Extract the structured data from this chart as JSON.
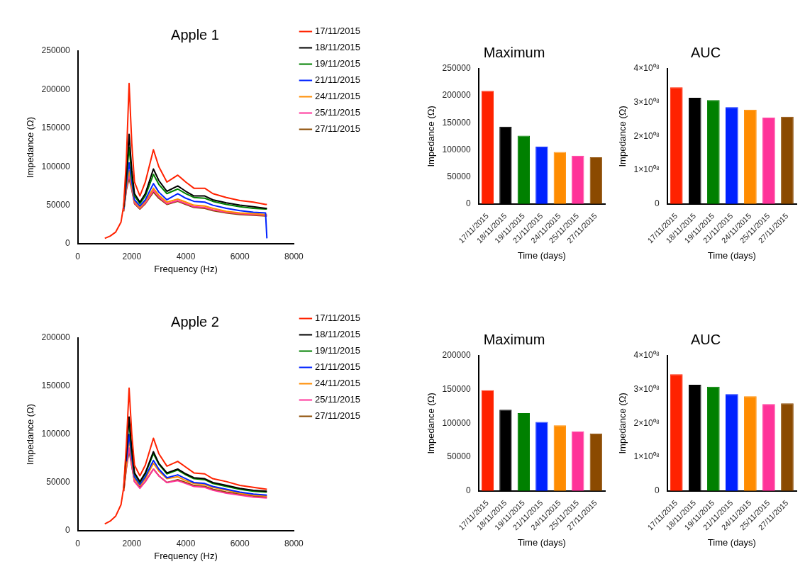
{
  "chart_data": [
    {
      "type": "line",
      "title": "Apple 1",
      "xlabel": "Frequency (Hz)",
      "ylabel": "Impedance (Ω)",
      "legend": "right",
      "marker": "none",
      "xlim": [
        0,
        8000
      ],
      "xticks": [
        0,
        2000,
        4000,
        6000,
        8000
      ],
      "ylim": [
        0,
        250000
      ],
      "yticks": [
        0,
        50000,
        100000,
        150000,
        200000,
        250000
      ],
      "x": [
        1000,
        1200,
        1400,
        1600,
        1700,
        1800,
        1900,
        2000,
        2100,
        2300,
        2500,
        2800,
        3000,
        3300,
        3700,
        4000,
        4300,
        4700,
        5000,
        5500,
        6000,
        6500,
        6950,
        7000
      ],
      "series": [
        {
          "name": "17/11/2015",
          "color": "#ff2200",
          "values": [
            7000,
            10000,
            15000,
            28000,
            50000,
            110000,
            208000,
            130000,
            80000,
            62000,
            80000,
            122000,
            100000,
            80000,
            89000,
            80000,
            72000,
            72000,
            65000,
            60000,
            56000,
            54000,
            51000,
            51000
          ]
        },
        {
          "name": "18/11/2015",
          "color": "#000000",
          "values": [
            null,
            null,
            null,
            null,
            48000,
            90000,
            142000,
            95000,
            65000,
            54000,
            65000,
            97000,
            82000,
            68000,
            75000,
            68000,
            62000,
            62000,
            57000,
            53000,
            50000,
            48000,
            46000,
            46000
          ]
        },
        {
          "name": "19/11/2015",
          "color": "#008000",
          "values": [
            null,
            null,
            null,
            null,
            47000,
            85000,
            125000,
            88000,
            62000,
            52000,
            62000,
            90000,
            77000,
            65000,
            71000,
            65000,
            60000,
            59000,
            55000,
            51000,
            48000,
            46000,
            45000,
            45000
          ]
        },
        {
          "name": "21/11/2015",
          "color": "#0022ff",
          "values": [
            null,
            null,
            null,
            null,
            45000,
            78000,
            105000,
            80000,
            57000,
            49000,
            57000,
            78000,
            67000,
            57000,
            65000,
            59000,
            55000,
            54000,
            50000,
            46000,
            43000,
            41000,
            40000,
            7000
          ]
        },
        {
          "name": "24/11/2015",
          "color": "#ff8c00",
          "values": [
            null,
            null,
            null,
            null,
            44000,
            75000,
            95000,
            75000,
            55000,
            47000,
            55000,
            72000,
            63000,
            54000,
            58000,
            54000,
            50000,
            49000,
            46000,
            42000,
            40000,
            39000,
            38000,
            38000
          ]
        },
        {
          "name": "25/11/2015",
          "color": "#ff3399",
          "values": [
            null,
            null,
            null,
            null,
            43000,
            72000,
            90000,
            72000,
            53000,
            46000,
            53000,
            69000,
            61000,
            52000,
            56000,
            52000,
            48000,
            47000,
            44000,
            41000,
            39000,
            38000,
            37000,
            37000
          ]
        },
        {
          "name": "27/11/2015",
          "color": "#8b4a00",
          "values": [
            null,
            null,
            null,
            null,
            42000,
            70000,
            85000,
            70000,
            52000,
            45000,
            52000,
            67000,
            59000,
            51000,
            55000,
            51000,
            47000,
            46000,
            43000,
            40000,
            38000,
            37000,
            36000,
            36000
          ]
        }
      ]
    },
    {
      "type": "bar",
      "title": "Maximum",
      "xlabel": "Time (days)",
      "ylabel": "Impedance (Ω)",
      "ylim": [
        0,
        250000
      ],
      "yticks": [
        0,
        50000,
        100000,
        150000,
        200000,
        250000
      ],
      "categories": [
        "17/11/2015",
        "18/11/2015",
        "19/11/2015",
        "21/11/2015",
        "24/11/2015",
        "25/11/2015",
        "27/11/2015"
      ],
      "values": [
        209000,
        143000,
        126000,
        106000,
        96000,
        89000,
        86000
      ],
      "colors": [
        "#ff2200",
        "#000000",
        "#008000",
        "#0022ff",
        "#ff8c00",
        "#ff3399",
        "#8b4a00"
      ]
    },
    {
      "type": "bar",
      "title": "AUC",
      "xlabel": "Time (days)",
      "ylabel": "Impedance (Ω)",
      "ylim": [
        0,
        400000000
      ],
      "yticks": [
        0,
        {
          "value": 100000000,
          "label": "1×10⁰⁸"
        },
        {
          "value": 200000000,
          "label": "2×10⁰⁸"
        },
        {
          "value": 300000000,
          "label": "3×10⁰⁸"
        },
        {
          "value": 400000000,
          "label": "4×10⁰⁸"
        }
      ],
      "categories": [
        "17/11/2015",
        "18/11/2015",
        "19/11/2015",
        "21/11/2015",
        "24/11/2015",
        "25/11/2015",
        "27/11/2015"
      ],
      "values": [
        345000000,
        314000000,
        307000000,
        286000000,
        279000000,
        256000000,
        258000000
      ],
      "colors": [
        "#ff2200",
        "#000000",
        "#008000",
        "#0022ff",
        "#ff8c00",
        "#ff3399",
        "#8b4a00"
      ]
    },
    {
      "type": "line",
      "title": "Apple 2",
      "xlabel": "Frequency (Hz)",
      "ylabel": "Impedance (Ω)",
      "legend": "right",
      "marker": "none",
      "xlim": [
        0,
        8000
      ],
      "xticks": [
        0,
        2000,
        4000,
        6000,
        8000
      ],
      "ylim": [
        0,
        200000
      ],
      "yticks": [
        0,
        50000,
        100000,
        150000,
        200000
      ],
      "x": [
        1000,
        1200,
        1400,
        1600,
        1700,
        1800,
        1900,
        2000,
        2100,
        2300,
        2500,
        2800,
        3000,
        3300,
        3700,
        4000,
        4300,
        4700,
        5000,
        5500,
        6000,
        6500,
        7000
      ],
      "series": [
        {
          "name": "17/11/2015",
          "color": "#ff2200",
          "values": [
            7000,
            10000,
            15000,
            27000,
            45000,
            90000,
            148000,
            100000,
            68000,
            57000,
            68000,
            96000,
            80000,
            67000,
            72000,
            66000,
            60000,
            59000,
            54000,
            51000,
            47000,
            45000,
            43000
          ]
        },
        {
          "name": "18/11/2015",
          "color": "#000000",
          "values": [
            null,
            null,
            null,
            null,
            44000,
            80000,
            118000,
            85000,
            60000,
            51000,
            60000,
            82000,
            70000,
            60000,
            64000,
            59000,
            55000,
            54000,
            50000,
            47000,
            44000,
            42000,
            41000
          ]
        },
        {
          "name": "19/11/2015",
          "color": "#008000",
          "values": [
            null,
            null,
            null,
            null,
            null,
            null,
            111000,
            82000,
            59000,
            50000,
            59000,
            80000,
            69000,
            59000,
            63000,
            58000,
            54000,
            53000,
            49000,
            46000,
            43000,
            41000,
            40000
          ]
        },
        {
          "name": "21/11/2015",
          "color": "#0022ff",
          "values": [
            null,
            null,
            null,
            null,
            null,
            72000,
            100000,
            76000,
            56000,
            48000,
            56000,
            73000,
            64000,
            55000,
            58000,
            54000,
            50000,
            49000,
            46000,
            43000,
            40000,
            38000,
            37000
          ]
        },
        {
          "name": "24/11/2015",
          "color": "#ff8c00",
          "values": [
            null,
            null,
            null,
            null,
            42000,
            70000,
            95000,
            73000,
            54000,
            47000,
            54000,
            70000,
            62000,
            54000,
            56000,
            52000,
            49000,
            48000,
            45000,
            42000,
            39000,
            37000,
            36000
          ]
        },
        {
          "name": "25/11/2015",
          "color": "#ff3399",
          "values": [
            null,
            null,
            null,
            null,
            41000,
            66000,
            86000,
            68000,
            51000,
            44000,
            51000,
            64000,
            57000,
            50000,
            52000,
            49000,
            46000,
            45000,
            42000,
            39000,
            37000,
            35000,
            34000
          ]
        },
        {
          "name": "27/11/2015",
          "color": "#8b4a00",
          "values": [
            null,
            null,
            null,
            null,
            41000,
            65000,
            83000,
            67000,
            51000,
            45000,
            51000,
            64000,
            57000,
            50000,
            53000,
            50000,
            47000,
            46000,
            43000,
            40000,
            38000,
            36000,
            35000
          ]
        }
      ]
    },
    {
      "type": "bar",
      "title": "Maximum",
      "xlabel": "Time (days)",
      "ylabel": "Impedance (Ω)",
      "ylim": [
        0,
        200000
      ],
      "yticks": [
        0,
        50000,
        100000,
        150000,
        200000
      ],
      "categories": [
        "17/11/2015",
        "18/11/2015",
        "19/11/2015",
        "21/11/2015",
        "24/11/2015",
        "25/11/2015",
        "27/11/2015"
      ],
      "values": [
        149000,
        120000,
        115000,
        102000,
        97000,
        88000,
        85000
      ],
      "colors": [
        "#ff2200",
        "#000000",
        "#008000",
        "#0022ff",
        "#ff8c00",
        "#ff3399",
        "#8b4a00"
      ]
    },
    {
      "type": "bar",
      "title": "AUC",
      "xlabel": "Time (days)",
      "ylabel": "Impedance (Ω)",
      "ylim": [
        0,
        400000000
      ],
      "yticks": [
        0,
        {
          "value": 100000000,
          "label": "1×10⁰⁸"
        },
        {
          "value": 200000000,
          "label": "2×10⁰⁸"
        },
        {
          "value": 300000000,
          "label": "3×10⁰⁸"
        },
        {
          "value": 400000000,
          "label": "4×10⁰⁸"
        }
      ],
      "categories": [
        "17/11/2015",
        "18/11/2015",
        "19/11/2015",
        "21/11/2015",
        "24/11/2015",
        "25/11/2015",
        "27/11/2015"
      ],
      "values": [
        345000000,
        314000000,
        308000000,
        286000000,
        280000000,
        257000000,
        259000000
      ],
      "colors": [
        "#ff2200",
        "#000000",
        "#008000",
        "#0022ff",
        "#ff8c00",
        "#ff3399",
        "#8b4a00"
      ]
    }
  ]
}
